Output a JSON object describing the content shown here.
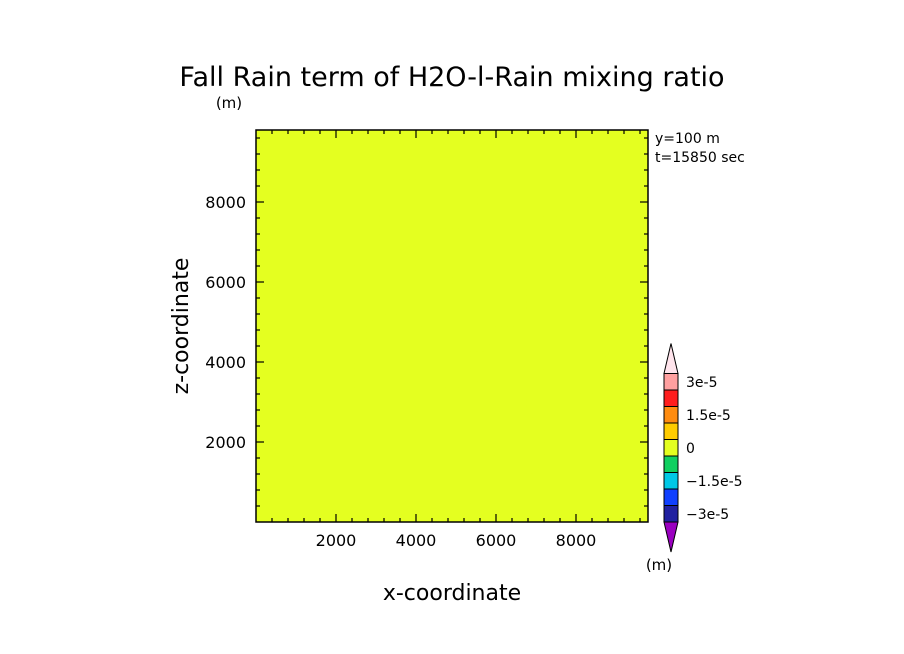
{
  "chart_data": {
    "type": "heatmap",
    "title": "Fall Rain term of H2O-l-Rain mixing ratio",
    "title_unit": "(m)",
    "annotations": [
      "y=100 m",
      "t=15850 sec"
    ],
    "xlabel": "x-coordinate",
    "ylabel": "z-coordinate",
    "xlim": [
      0,
      9800
    ],
    "ylim": [
      0,
      9800
    ],
    "x_ticks": [
      2000,
      4000,
      6000,
      8000
    ],
    "y_ticks": [
      2000,
      4000,
      6000,
      8000
    ],
    "x_tick_labels": [
      "2000",
      "4000",
      "6000",
      "8000"
    ],
    "y_tick_labels": [
      "2000",
      "4000",
      "6000",
      "8000"
    ],
    "field_levels": {
      "orange_value": 0,
      "yellow_value": -7.5e-06
    },
    "colorbar": {
      "unit_label": "(m)",
      "levels": [
        -3e-05,
        -2.25e-05,
        -1.5e-05,
        -7.5e-06,
        0,
        7.5e-06,
        1.5e-05,
        2.25e-05,
        3e-05
      ],
      "colors": [
        "#9a00c0",
        "#2020a0",
        "#1040ff",
        "#00c8e6",
        "#10d060",
        "#e4ff20",
        "#ffcc00",
        "#ff8c10",
        "#ff1e1e",
        "#ffa0a0",
        "#ffe4ec"
      ],
      "tick_labels": [
        {
          "level": 3e-05,
          "label": "3e-5"
        },
        {
          "level": 1.5e-05,
          "label": "1.5e-5"
        },
        {
          "level": 0,
          "label": "0"
        },
        {
          "level": -1.5e-05,
          "label": "−1.5e-5"
        },
        {
          "level": -3e-05,
          "label": "−3e-5"
        }
      ]
    }
  }
}
